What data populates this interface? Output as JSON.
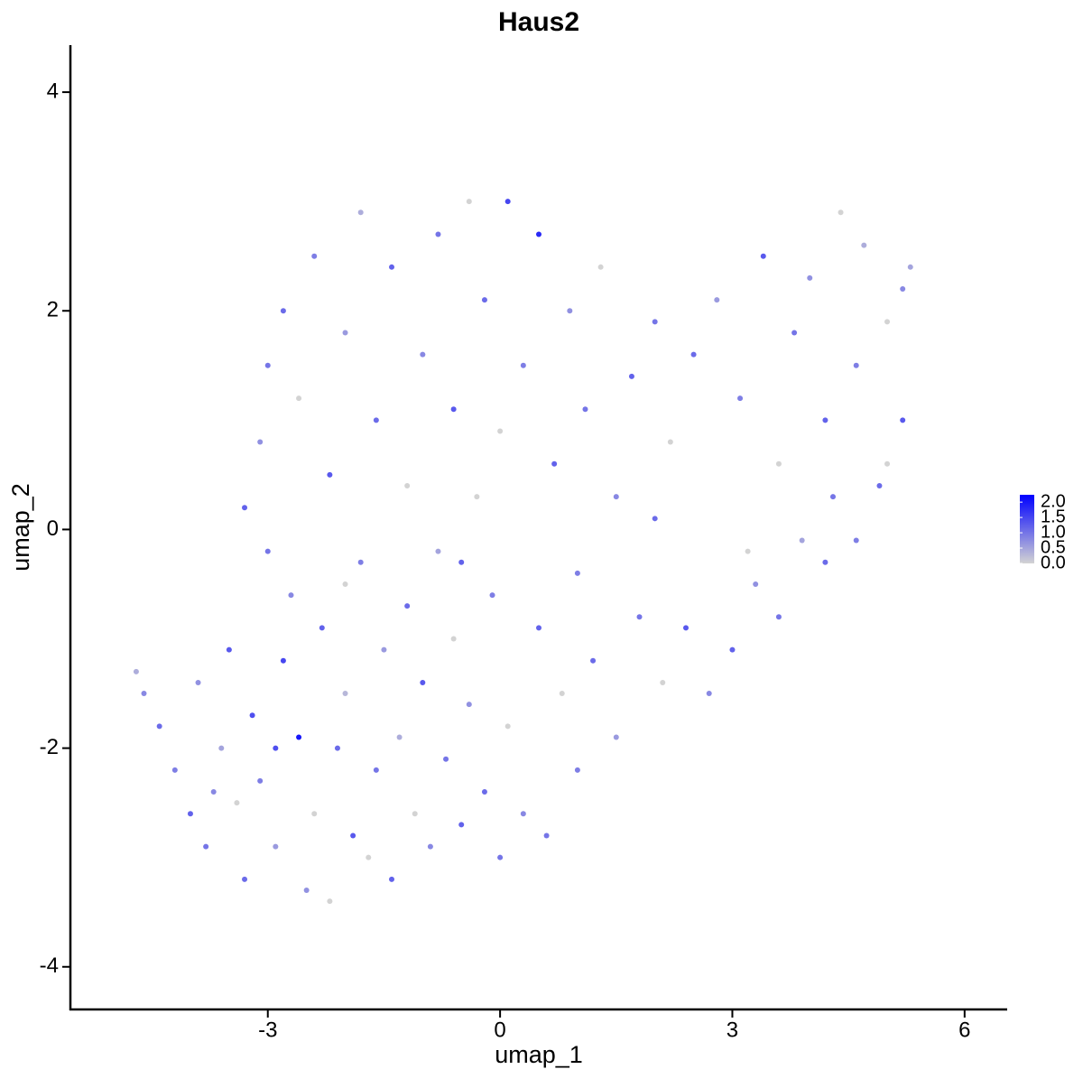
{
  "chart_data": {
    "type": "scatter",
    "title": "Haus2",
    "x_label": "umap_1",
    "y_label": "umap_2",
    "xlim": [
      -5.55,
      6.55
    ],
    "ylim": [
      -4.39,
      4.43
    ],
    "xticks": [
      -3,
      0,
      3,
      6
    ],
    "yticks": [
      -4,
      -2,
      0,
      2,
      4
    ],
    "color_low": "#d3d3d3",
    "color_high": "#0000ff",
    "colorbar_lim": [
      0,
      2.24
    ],
    "colorbar_ticks": [
      {
        "value": 0,
        "label": "0.0"
      },
      {
        "value": 0.5,
        "label": "0.5"
      },
      {
        "value": 1,
        "label": "1.0"
      },
      {
        "value": 1.5,
        "label": "1.5"
      },
      {
        "value": 2,
        "label": "2.0"
      }
    ],
    "x": [
      -4.7,
      -4.6,
      -4.4,
      -4.2,
      -4.0,
      -3.9,
      -3.8,
      -3.6,
      -3.5,
      -3.4,
      -3.3,
      -3.2,
      -3.1,
      -3.0,
      -2.9,
      -2.8,
      -2.7,
      -2.6,
      -2.5,
      -2.4,
      -2.3,
      -2.2,
      -2.1,
      -2.0,
      -1.9,
      -1.8,
      -1.7,
      -1.6,
      -1.5,
      -1.4,
      -1.3,
      -1.2,
      -1.1,
      -1.0,
      -0.9,
      -0.8,
      -0.7,
      -0.6,
      -0.5,
      -0.4,
      -0.3,
      -0.2,
      -0.1,
      0.0,
      0.1,
      0.3,
      0.5,
      0.6,
      0.8,
      1.0,
      1.2,
      1.5,
      1.8,
      2.1,
      2.4,
      2.7,
      3.0,
      3.3,
      3.6,
      3.9,
      4.2,
      4.6,
      5.0,
      5.2,
      -3.3,
      -3.1,
      -3.0,
      -2.8,
      -2.6,
      -2.4,
      -2.2,
      -2.0,
      -1.8,
      -1.6,
      -1.4,
      -1.2,
      -1.0,
      -0.8,
      -0.6,
      -0.4,
      -0.2,
      0.0,
      0.1,
      0.3,
      0.5,
      0.7,
      0.9,
      1.1,
      1.3,
      1.5,
      1.7,
      2.0,
      2.2,
      2.5,
      2.8,
      3.1,
      3.4,
      3.6,
      3.8,
      4.0,
      4.2,
      4.4,
      4.6,
      4.7,
      4.9,
      5.0,
      5.2,
      5.3,
      4.3,
      3.2,
      2.0,
      1.0,
      -0.5,
      -2.0,
      -2.9,
      -3.7
    ],
    "y": [
      -1.3,
      -1.5,
      -1.8,
      -2.2,
      -2.6,
      -1.4,
      -2.9,
      -2.0,
      -1.1,
      -2.5,
      -3.2,
      -1.7,
      -2.3,
      -0.2,
      -2.9,
      -1.2,
      -0.6,
      -1.9,
      -3.3,
      -2.6,
      -0.9,
      -3.4,
      -2.0,
      -1.5,
      -2.8,
      -0.3,
      -3.0,
      -2.2,
      -1.1,
      -3.2,
      -1.9,
      -0.7,
      -2.6,
      -1.4,
      -2.9,
      -0.2,
      -2.1,
      -1.0,
      -2.7,
      -1.6,
      0.3,
      -2.4,
      -0.6,
      -3.0,
      -1.8,
      -2.6,
      -0.9,
      -2.8,
      -1.5,
      -2.2,
      -1.2,
      -1.9,
      -0.8,
      -1.4,
      -0.9,
      -1.5,
      -1.1,
      -0.5,
      -0.8,
      -0.1,
      -0.3,
      -0.1,
      0.6,
      1.0,
      0.2,
      0.8,
      1.5,
      2.0,
      1.2,
      2.5,
      0.5,
      1.8,
      2.9,
      1.0,
      2.4,
      0.4,
      1.6,
      2.7,
      1.1,
      3.0,
      2.1,
      0.9,
      3.0,
      1.5,
      2.7,
      0.6,
      2.0,
      1.1,
      2.4,
      0.3,
      1.4,
      1.9,
      0.8,
      1.6,
      2.1,
      1.2,
      2.5,
      0.6,
      1.8,
      2.3,
      1.0,
      2.9,
      1.5,
      2.6,
      0.4,
      1.9,
      2.2,
      2.4,
      0.3,
      -0.2,
      0.1,
      -0.4,
      -0.3,
      -0.5,
      -2.0,
      -2.4
    ],
    "values": [
      0.4,
      0.8,
      1.1,
      0.9,
      1.2,
      0.7,
      1.0,
      0.5,
      1.3,
      0.0,
      1.1,
      1.4,
      0.9,
      1.0,
      0.6,
      1.5,
      0.8,
      2.0,
      0.7,
      0.0,
      1.2,
      0.0,
      1.1,
      0.3,
      1.3,
      0.9,
      0.0,
      1.0,
      0.6,
      1.2,
      0.4,
      1.1,
      0.0,
      1.3,
      0.8,
      0.5,
      1.0,
      0.0,
      1.2,
      0.7,
      0.0,
      1.1,
      0.9,
      1.0,
      0.0,
      0.8,
      1.2,
      1.0,
      0.0,
      0.9,
      1.1,
      0.6,
      1.0,
      0.0,
      1.3,
      0.8,
      1.2,
      0.7,
      1.0,
      0.5,
      1.1,
      0.9,
      0.0,
      1.3,
      1.2,
      0.7,
      1.0,
      1.1,
      0.0,
      0.9,
      1.3,
      0.6,
      0.4,
      1.1,
      1.2,
      0.0,
      0.8,
      1.0,
      1.3,
      0.0,
      1.1,
      0.0,
      1.5,
      0.9,
      1.8,
      1.2,
      0.7,
      1.0,
      0.0,
      0.8,
      1.2,
      1.0,
      0.0,
      1.1,
      0.6,
      0.9,
      1.3,
      0.0,
      1.0,
      0.7,
      1.2,
      0.0,
      0.9,
      0.4,
      1.1,
      0.0,
      0.8,
      0.5,
      1.0,
      0.0,
      1.1,
      0.9,
      1.2,
      0.0,
      1.4,
      0.8
    ]
  }
}
